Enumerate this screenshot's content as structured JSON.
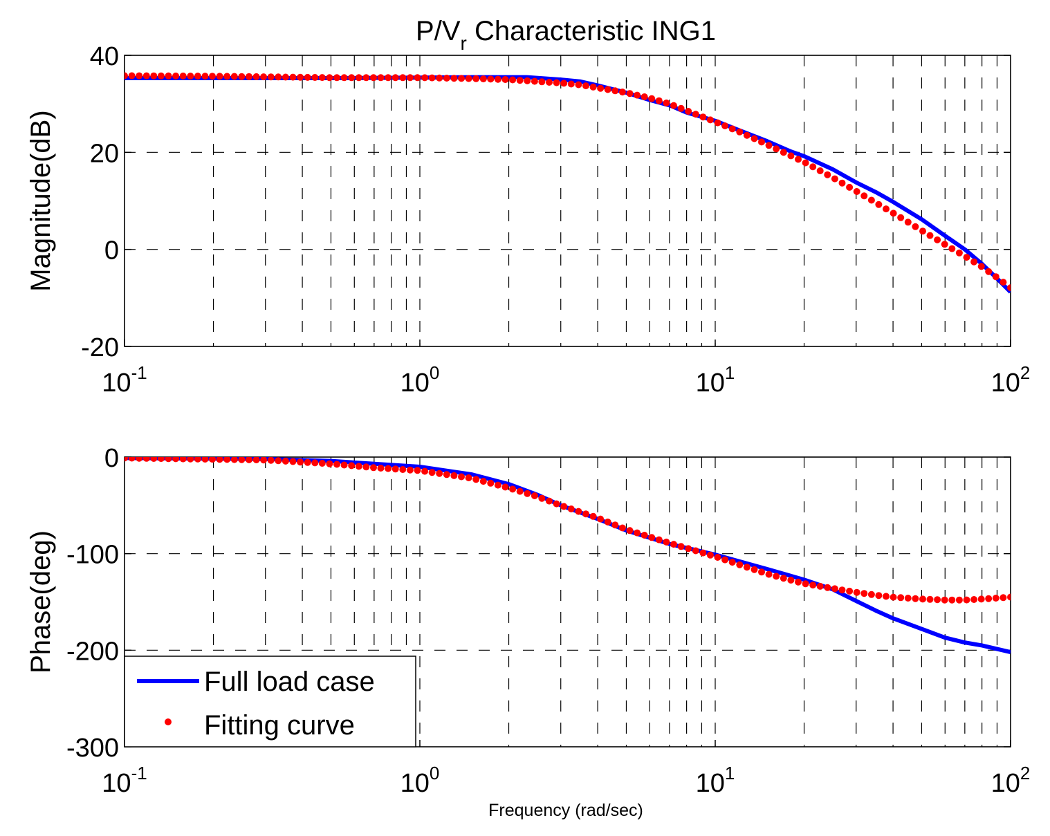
{
  "figure": {
    "title_main": "P/V",
    "title_sub": "r",
    "title_rest": " Characteristic ING1",
    "xlabel": "Frequency (rad/sec)"
  },
  "chart_data": [
    {
      "type": "line",
      "panel": "magnitude",
      "ylabel": "Magnitude(dB)",
      "xscale": "log",
      "xlim": [
        0.1,
        100
      ],
      "ylim": [
        -20,
        40
      ],
      "yticks": [
        "40",
        "20",
        "0",
        "-20"
      ],
      "ytick_values": [
        40,
        20,
        0,
        -20
      ],
      "xticks": [
        {
          "base": "10",
          "exp": "-1"
        },
        {
          "base": "10",
          "exp": "0"
        },
        {
          "base": "10",
          "exp": "1"
        },
        {
          "base": "10",
          "exp": "2"
        }
      ],
      "xtick_values": [
        0.1,
        1,
        10,
        100
      ],
      "grid": true,
      "series": [
        {
          "name": "Full load case",
          "color": "#0000ff",
          "style": "solid-line",
          "x": [
            0.1,
            0.2,
            0.5,
            1,
            1.5,
            2,
            2.3,
            3,
            3.5,
            4,
            5,
            6,
            7,
            8,
            10,
            12,
            15,
            18,
            20,
            25,
            30,
            35,
            40,
            50,
            60,
            70,
            80,
            90,
            100
          ],
          "y": [
            35.3,
            35.3,
            35.3,
            35.4,
            35.5,
            35.5,
            35.5,
            35.0,
            34.6,
            33.8,
            32.3,
            30.8,
            29.7,
            28.2,
            26.5,
            24.6,
            22.3,
            20.2,
            19.2,
            16.5,
            13.8,
            11.8,
            9.8,
            6.2,
            2.8,
            0.0,
            -3.0,
            -6.0,
            -8.8
          ]
        },
        {
          "name": "Fitting curve",
          "color": "#ff0000",
          "style": "dots",
          "x": [
            0.1,
            0.2,
            0.5,
            1,
            1.5,
            2,
            2.5,
            3,
            3.5,
            4,
            5,
            6,
            7,
            8,
            10,
            12,
            15,
            18,
            20,
            25,
            30,
            35,
            40,
            50,
            60,
            70,
            80,
            90,
            100
          ],
          "y": [
            35.8,
            35.7,
            35.4,
            35.4,
            35.2,
            35.0,
            34.6,
            34.3,
            33.9,
            33.3,
            32.3,
            31.2,
            30.0,
            28.6,
            26.3,
            24.3,
            21.6,
            19.3,
            18.0,
            14.8,
            12.0,
            9.6,
            7.5,
            3.9,
            1.0,
            -1.4,
            -3.6,
            -5.8,
            -7.9
          ]
        }
      ]
    },
    {
      "type": "line",
      "panel": "phase",
      "ylabel": "Phase(deg)",
      "xscale": "log",
      "xlim": [
        0.1,
        100
      ],
      "ylim": [
        -300,
        0
      ],
      "yticks": [
        "0",
        "-100",
        "-200",
        "-300"
      ],
      "ytick_values": [
        0,
        -100,
        -200,
        -300
      ],
      "xticks": [
        {
          "base": "10",
          "exp": "-1"
        },
        {
          "base": "10",
          "exp": "0"
        },
        {
          "base": "10",
          "exp": "1"
        },
        {
          "base": "10",
          "exp": "2"
        }
      ],
      "xtick_values": [
        0.1,
        1,
        10,
        100
      ],
      "grid": true,
      "legend_placement": "lower-left",
      "series": [
        {
          "name": "Full load case",
          "color": "#0000ff",
          "style": "solid-line",
          "x": [
            0.1,
            0.3,
            0.5,
            0.7,
            1,
            1.5,
            2,
            2.5,
            3,
            4,
            5,
            7,
            10,
            15,
            20,
            25,
            30,
            35,
            40,
            50,
            60,
            70,
            80,
            100
          ],
          "y": [
            -1,
            -2,
            -4,
            -7,
            -10,
            -18,
            -28,
            -39,
            -50,
            -64,
            -76,
            -90,
            -101,
            -116,
            -127,
            -137,
            -149,
            -159,
            -167,
            -178,
            -187,
            -192,
            -195,
            -202
          ]
        },
        {
          "name": "Fitting curve",
          "color": "#ff0000",
          "style": "dots",
          "x": [
            0.1,
            0.3,
            0.5,
            0.7,
            1,
            1.5,
            2,
            2.5,
            3,
            4,
            5,
            7,
            10,
            15,
            20,
            25,
            30,
            35,
            40,
            50,
            60,
            70,
            80,
            90,
            100
          ],
          "y": [
            -1,
            -3,
            -7,
            -11,
            -14,
            -22,
            -32,
            -41,
            -50,
            -63,
            -75,
            -89,
            -103,
            -121,
            -131,
            -136,
            -140,
            -143,
            -145,
            -147,
            -148,
            -148,
            -147,
            -146,
            -145
          ]
        }
      ]
    }
  ]
}
